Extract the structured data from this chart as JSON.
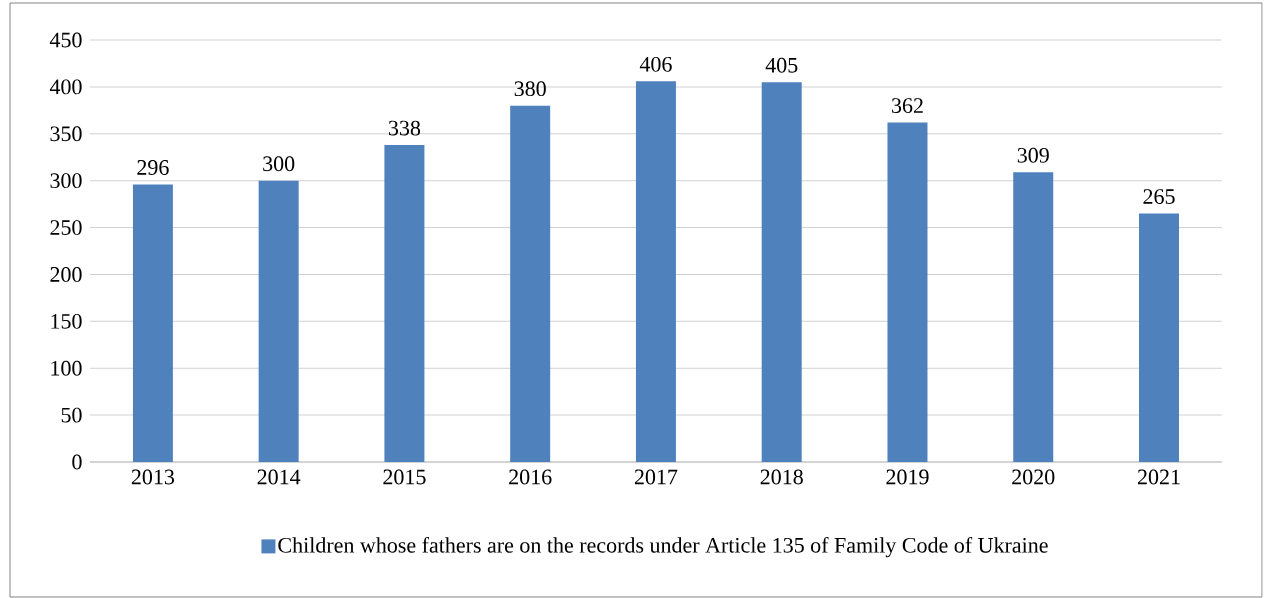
{
  "chart_data": {
    "type": "bar",
    "categories": [
      "2013",
      "2014",
      "2015",
      "2016",
      "2017",
      "2018",
      "2019",
      "2020",
      "2021"
    ],
    "series": [
      {
        "name": "Children whose fathers are on the records under Article 135 of Family Code of Ukraine",
        "color": "#4f81bd",
        "values": [
          296,
          300,
          338,
          380,
          406,
          405,
          362,
          309,
          265
        ]
      }
    ],
    "ylim": [
      0,
      450
    ],
    "yticks": [
      0,
      50,
      100,
      150,
      200,
      250,
      300,
      350,
      400,
      450
    ],
    "grid": "y",
    "legend": "bottom",
    "data_labels": true
  }
}
